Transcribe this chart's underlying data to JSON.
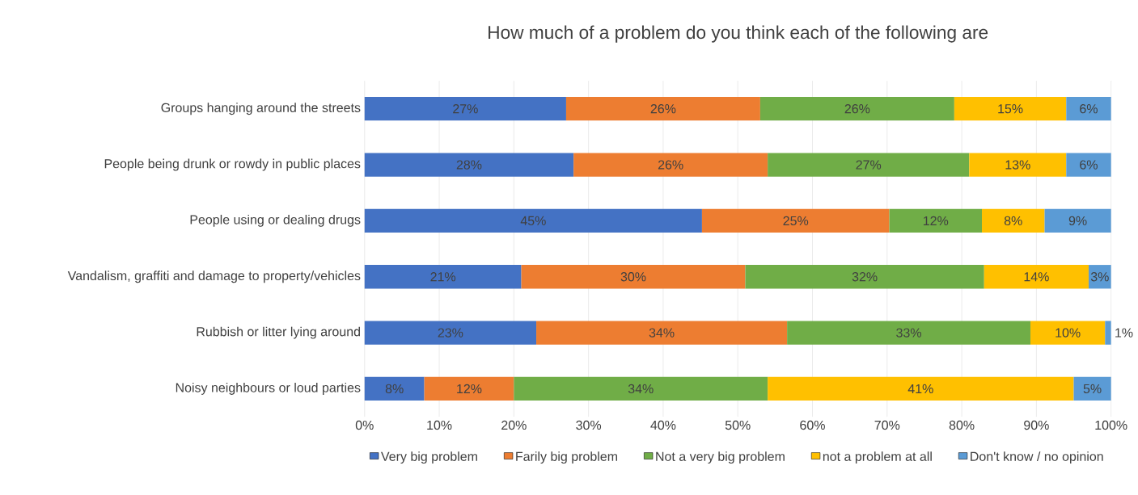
{
  "chart_data": {
    "type": "bar",
    "orientation": "horizontal",
    "stacked": true,
    "title": "How much of a problem do you think each of the following are",
    "categories": [
      "Groups hanging around the streets",
      "People being drunk or rowdy in public places",
      "People using or dealing drugs",
      "Vandalism, graffiti and damage to property/vehicles",
      "Rubbish or litter lying around",
      "Noisy neighbours or loud parties"
    ],
    "series": [
      {
        "name": "Very big problem",
        "color": "#4472c4",
        "values": [
          27,
          28,
          45.2,
          21,
          23,
          8
        ],
        "value_labels": [
          "27%",
          "28%",
          "45%",
          "21%",
          "23%",
          "8%"
        ]
      },
      {
        "name": "Farily big problem",
        "color": "#ed7d31",
        "values": [
          26,
          26,
          25.1,
          30,
          33.6,
          12
        ],
        "value_labels": [
          "26%",
          "26%",
          "25%",
          "30%",
          "34%",
          "12%"
        ]
      },
      {
        "name": "Not a very big problem",
        "color": "#70ad47",
        "values": [
          26,
          27,
          12.4,
          32,
          32.6,
          34
        ],
        "value_labels": [
          "26%",
          "27%",
          "12%",
          "32%",
          "33%",
          "34%"
        ]
      },
      {
        "name": "not a problem at all",
        "color": "#ffc000",
        "values": [
          15,
          13,
          8.4,
          14,
          10,
          41
        ],
        "value_labels": [
          "15%",
          "13%",
          "8%",
          "14%",
          "10%",
          "41%"
        ]
      },
      {
        "name": "Don't know / no opinion",
        "color": "#5b9bd5",
        "values": [
          6,
          6,
          8.9,
          3,
          0.8,
          5
        ],
        "value_labels": [
          "6%",
          "6%",
          "9%",
          "3%",
          "1%",
          "5%"
        ]
      }
    ],
    "xlim": [
      0,
      100
    ],
    "xticks": [
      {
        "value": 0,
        "label": "0%"
      },
      {
        "value": 10,
        "label": "10%"
      },
      {
        "value": 20,
        "label": "20%"
      },
      {
        "value": 30,
        "label": "30%"
      },
      {
        "value": 40,
        "label": "40%"
      },
      {
        "value": 50,
        "label": "50%"
      },
      {
        "value": 60,
        "label": "60%"
      },
      {
        "value": 70,
        "label": "70%"
      },
      {
        "value": 80,
        "label": "80%"
      },
      {
        "value": 90,
        "label": "90%"
      },
      {
        "value": 100,
        "label": "100%"
      }
    ],
    "grid": "x",
    "legend": "bottom"
  }
}
